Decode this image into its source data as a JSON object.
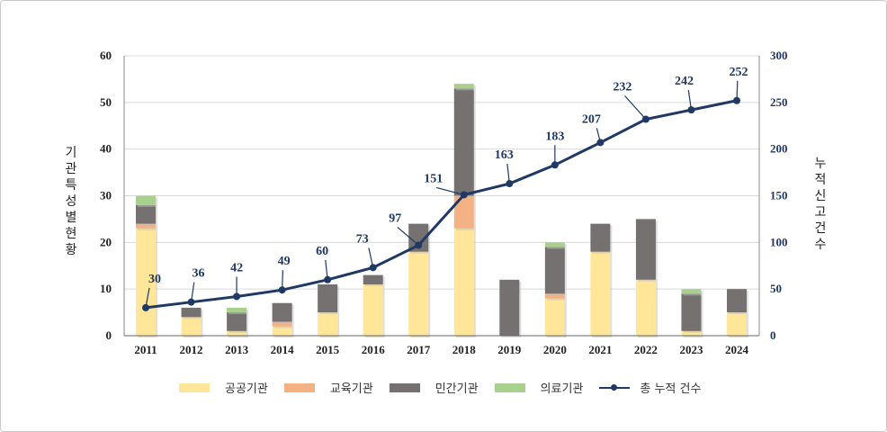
{
  "chart_data": {
    "type": "bar+line",
    "categories": [
      "2011",
      "2012",
      "2013",
      "2014",
      "2015",
      "2016",
      "2017",
      "2018",
      "2019",
      "2020",
      "2021",
      "2022",
      "2023",
      "2024"
    ],
    "stacked": true,
    "series": [
      {
        "name": "공공기관",
        "type": "bar",
        "axis": "left",
        "color": "#ffe699",
        "values": [
          23,
          4,
          1,
          2,
          5,
          11,
          18,
          23,
          0,
          8,
          18,
          12,
          1,
          5
        ]
      },
      {
        "name": "교육기관",
        "type": "bar",
        "axis": "left",
        "color": "#f4b183",
        "values": [
          1,
          0,
          0,
          1,
          0,
          0,
          0,
          7,
          0,
          1,
          0,
          0,
          0,
          0
        ]
      },
      {
        "name": "민간기관",
        "type": "bar",
        "axis": "left",
        "color": "#767171",
        "values": [
          4,
          2,
          4,
          4,
          6,
          2,
          6,
          23,
          12,
          10,
          6,
          13,
          8,
          5
        ]
      },
      {
        "name": "의료기관",
        "type": "bar",
        "axis": "left",
        "color": "#a9d18e",
        "values": [
          2,
          0,
          1,
          0,
          0,
          0,
          0,
          1,
          0,
          1,
          0,
          0,
          1,
          0
        ]
      },
      {
        "name": "총 누적 건수",
        "type": "line",
        "axis": "right",
        "color": "#1f3864",
        "values": [
          30,
          36,
          42,
          49,
          60,
          73,
          97,
          151,
          163,
          183,
          207,
          232,
          242,
          252
        ]
      }
    ],
    "ylabel_left": "기관 특성별 현황",
    "ylabel_right": "누적 신고 건수",
    "ylim_left": [
      0,
      60
    ],
    "ylim_right": [
      0,
      300
    ],
    "yticks_left": [
      0,
      10,
      20,
      30,
      40,
      50,
      60
    ],
    "yticks_right": [
      0,
      50,
      100,
      150,
      200,
      250,
      300
    ],
    "grid": true,
    "legend": "bottom"
  }
}
